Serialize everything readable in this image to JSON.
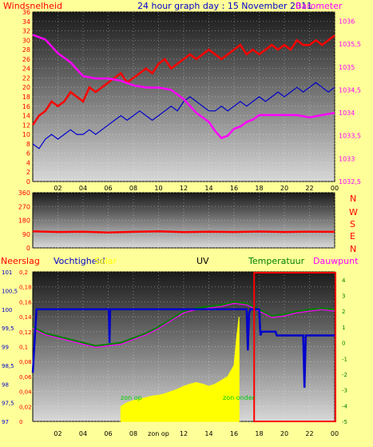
{
  "colors": {
    "background": "#ffff99",
    "wind": "#ff0000",
    "wind_avg": "#0000cc",
    "barometer": "#ff00ff",
    "direction": "#ff0000",
    "humidity": "#0000cc",
    "solar": "#ffff00",
    "temperature": "#008000",
    "dewpoint": "#ff00ff",
    "uv": "#000000",
    "axis_right": "#ff00ff",
    "axis_left": "#ff0000"
  },
  "header": {
    "left": "Windsnelheid",
    "center": "24 hour graph day : 15 November 2011",
    "right": "Barometer"
  },
  "labels": {
    "compass": [
      "N",
      "W",
      "S",
      "E",
      "N"
    ],
    "neerslag": "Neerslag",
    "vochtigheid": "Vochtigheid",
    "solar": "Solar",
    "uv": "UV",
    "temperatuur": "Temperatuur",
    "dauwpunt": "Dauwpunt",
    "zon_op_axis": "zon op",
    "zon_op_marker": "zon op",
    "zon_onder_marker": "zon onder"
  },
  "chart_data": [
    {
      "type": "line",
      "name": "wind-barometer",
      "x_ticks": [
        "02",
        "04",
        "06",
        "08",
        "10",
        "12",
        "14",
        "16",
        "18",
        "20",
        "22",
        "00"
      ],
      "y_left_ticks": [
        "0",
        "2",
        "4",
        "6",
        "8",
        "10",
        "12",
        "14",
        "16",
        "18",
        "20",
        "22",
        "24",
        "26",
        "28",
        "30",
        "32",
        "34",
        "36"
      ],
      "y_left_range": [
        0,
        36
      ],
      "y_right_ticks": [
        "1032,5",
        "1033",
        "1033,5",
        "1034",
        "1034,5",
        "1035",
        "1035,5",
        "1036"
      ],
      "y_right_range": [
        1032.5,
        1036.2
      ],
      "x_range": [
        0,
        24
      ],
      "series": [
        {
          "key": "wind_gust",
          "x": [
            0,
            0.5,
            1,
            1.5,
            2,
            2.5,
            3,
            3.5,
            4,
            4.5,
            5,
            5.5,
            6,
            6.5,
            7,
            7.5,
            8,
            8.5,
            9,
            9.5,
            10,
            10.5,
            11,
            11.5,
            12,
            12.5,
            13,
            13.5,
            14,
            14.5,
            15,
            15.5,
            16,
            16.5,
            17,
            17.5,
            18,
            18.5,
            19,
            19.5,
            20,
            20.5,
            21,
            21.5,
            22,
            22.5,
            23,
            23.5,
            24
          ],
          "values": [
            12,
            14,
            15,
            17,
            16,
            17,
            19,
            18,
            17,
            20,
            19,
            20,
            21,
            22,
            23,
            21,
            22,
            23,
            24,
            23,
            25,
            26,
            24,
            25,
            26,
            27,
            26,
            27,
            28,
            27,
            26,
            27,
            28,
            29,
            27,
            28,
            27,
            28,
            29,
            28,
            29,
            28,
            30,
            29,
            29,
            30,
            29,
            30,
            31
          ]
        },
        {
          "key": "wind_avg",
          "x": [
            0,
            0.5,
            1,
            1.5,
            2,
            2.5,
            3,
            3.5,
            4,
            4.5,
            5,
            5.5,
            6,
            6.5,
            7,
            7.5,
            8,
            8.5,
            9,
            9.5,
            10,
            10.5,
            11,
            11.5,
            12,
            12.5,
            13,
            13.5,
            14,
            14.5,
            15,
            15.5,
            16,
            16.5,
            17,
            17.5,
            18,
            18.5,
            19,
            19.5,
            20,
            20.5,
            21,
            21.5,
            22,
            22.5,
            23,
            23.5,
            24
          ],
          "values": [
            8,
            7,
            9,
            10,
            9,
            10,
            11,
            10,
            10,
            11,
            10,
            11,
            12,
            13,
            14,
            13,
            14,
            15,
            14,
            13,
            14,
            15,
            16,
            15,
            17,
            18,
            17,
            16,
            15,
            15,
            16,
            15,
            16,
            17,
            16,
            17,
            18,
            17,
            18,
            19,
            18,
            19,
            20,
            19,
            20,
            21,
            20,
            19,
            20
          ]
        },
        {
          "key": "barometer",
          "axis": "right",
          "x": [
            0,
            1,
            2,
            3,
            4,
            5,
            6,
            7,
            8,
            9,
            10,
            11,
            12,
            13,
            14,
            14.5,
            15,
            15.5,
            16,
            16.5,
            17,
            17.5,
            18,
            19,
            20,
            21,
            22,
            23,
            24
          ],
          "values": [
            1035.7,
            1035.6,
            1035.3,
            1035.1,
            1034.8,
            1034.75,
            1034.75,
            1034.7,
            1034.6,
            1034.55,
            1034.55,
            1034.5,
            1034.3,
            1034.0,
            1033.8,
            1033.6,
            1033.45,
            1033.5,
            1033.65,
            1033.7,
            1033.8,
            1033.85,
            1033.95,
            1033.95,
            1033.95,
            1033.95,
            1033.9,
            1033.95,
            1034.0
          ]
        }
      ]
    },
    {
      "type": "line",
      "name": "wind-direction",
      "x_ticks": [
        "02",
        "04",
        "06",
        "08",
        "10",
        "12",
        "14",
        "16",
        "18",
        "20",
        "22",
        "00"
      ],
      "y_ticks": [
        "0",
        "90",
        "180",
        "270",
        "360"
      ],
      "y_range": [
        0,
        360
      ],
      "x_range": [
        0,
        24
      ],
      "series": [
        {
          "key": "direction",
          "x": [
            0,
            2,
            4,
            6,
            8,
            10,
            12,
            14,
            16,
            18,
            20,
            22,
            24
          ],
          "values": [
            108,
            104,
            106,
            100,
            105,
            108,
            103,
            106,
            104,
            107,
            104,
            106,
            105
          ]
        }
      ]
    },
    {
      "type": "line",
      "name": "humidity-temperature-solar",
      "x_ticks": [
        "02",
        "04",
        "06",
        "08",
        "zon op",
        "12",
        "14",
        "16",
        "18",
        "20",
        "22",
        "00"
      ],
      "y_left1_ticks": [
        "97",
        "97,5",
        "98",
        "98,5",
        "99",
        "99,5",
        "100",
        "100,5",
        "101"
      ],
      "y_left1_range": [
        97,
        101
      ],
      "y_left2_ticks": [
        "0",
        "0,02",
        "0,04",
        "0,06",
        "0,08",
        "0,1",
        "0,12",
        "0,14",
        "0,16",
        "0,18",
        "0,2"
      ],
      "y_left2_range": [
        0,
        0.2
      ],
      "y_right_ticks": [
        "-5",
        "-4",
        "-3",
        "-2",
        "-1",
        "0",
        "1",
        "2",
        "3",
        "4"
      ],
      "y_right_range": [
        -5,
        4.5
      ],
      "x_range": [
        0,
        24
      ],
      "series": [
        {
          "key": "humidity",
          "x": [
            0,
            0.3,
            0.4,
            6.0,
            6.05,
            6.1,
            6.15,
            17.0,
            17.1,
            17.2,
            17.3,
            18.0,
            18.1,
            18.2,
            19.3,
            19.4,
            21.5,
            21.6,
            21.7,
            21.8,
            24
          ],
          "values": [
            98.3,
            100,
            100,
            100,
            100,
            99.1,
            100,
            100,
            98.9,
            99.9,
            100,
            100,
            99.3,
            99.4,
            99.4,
            99.3,
            99.3,
            97.9,
            99.3,
            99.3,
            99.3
          ]
        },
        {
          "key": "temperature",
          "axis": "right",
          "x": [
            0,
            1,
            2,
            3,
            4,
            5,
            6,
            7,
            8,
            9,
            10,
            11,
            12,
            13,
            14,
            15,
            16,
            17,
            18,
            19,
            20,
            21,
            22,
            23,
            24
          ],
          "values": [
            1.0,
            0.6,
            0.4,
            0.2,
            0.0,
            -0.2,
            -0.1,
            0.0,
            0.3,
            0.6,
            1.0,
            1.5,
            2.0,
            2.2,
            2.3,
            2.4,
            2.6,
            2.5,
            2.1,
            1.7,
            1.8,
            2.0,
            2.1,
            2.2,
            2.1
          ]
        },
        {
          "key": "dewpoint",
          "axis": "right",
          "x": [
            0,
            1,
            2,
            3,
            4,
            5,
            6,
            7,
            8,
            9,
            10,
            11,
            12,
            13,
            14,
            15,
            16,
            17,
            18,
            19,
            20,
            21,
            22,
            23,
            24
          ],
          "values": [
            0.9,
            0.5,
            0.3,
            0.1,
            -0.1,
            -0.3,
            -0.2,
            -0.1,
            0.2,
            0.5,
            0.9,
            1.4,
            1.9,
            2.1,
            2.2,
            2.3,
            2.5,
            2.4,
            2.0,
            1.6,
            1.7,
            1.9,
            2.0,
            2.1,
            2.0
          ]
        },
        {
          "key": "solar",
          "kind": "area",
          "axis": "left2",
          "x": [
            7.0,
            7.5,
            8,
            8.5,
            9,
            9.5,
            10,
            10.5,
            11,
            11.5,
            12,
            12.5,
            13,
            13.5,
            14,
            14.5,
            15,
            15.5,
            16,
            16.2,
            16.4
          ],
          "values": [
            0.02,
            0.025,
            0.028,
            0.03,
            0.032,
            0.034,
            0.035,
            0.037,
            0.04,
            0.043,
            0.047,
            0.05,
            0.052,
            0.05,
            0.047,
            0.05,
            0.055,
            0.06,
            0.075,
            0.11,
            0.14
          ]
        }
      ],
      "highlight_box_from_hour": 17.6
    }
  ]
}
